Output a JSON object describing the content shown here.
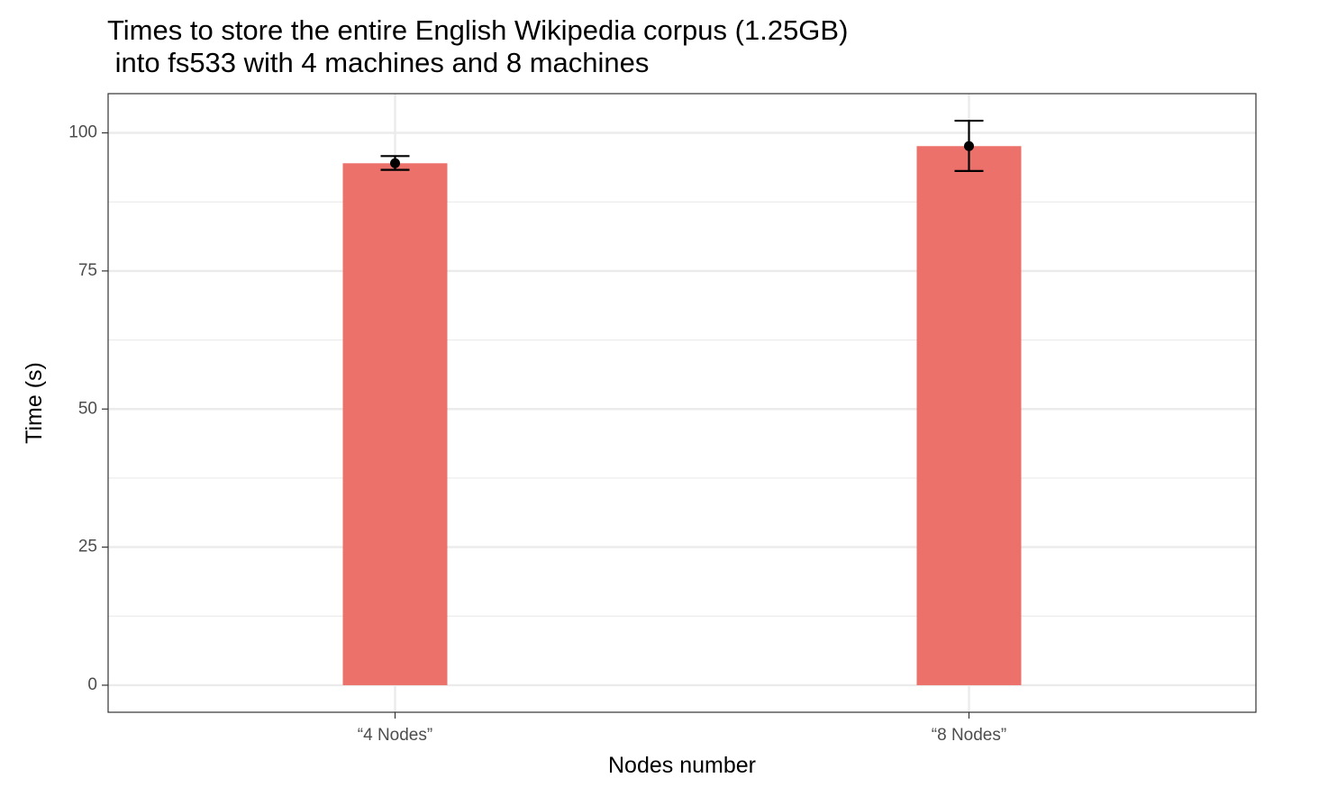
{
  "chart_data": {
    "type": "bar",
    "title": "Times to store the entire English Wikipedia corpus (1.25GB)\n into fs533 with 4 machines and 8 machines",
    "xlabel": "Nodes number",
    "ylabel": "Time (s)",
    "categories": [
      "“4 Nodes”",
      "“8 Nodes”"
    ],
    "values": [
      94.5,
      97.6
    ],
    "error_bars": [
      {
        "low": 93.3,
        "high": 95.8
      },
      {
        "low": 93.1,
        "high": 102.2
      }
    ],
    "ylim": [
      -4.9,
      107.1
    ],
    "yticks": [
      0,
      25,
      50,
      75,
      100
    ],
    "grid": true,
    "legend": "none",
    "bar_color": "#ED716B",
    "errorbar_color": "#000000"
  }
}
